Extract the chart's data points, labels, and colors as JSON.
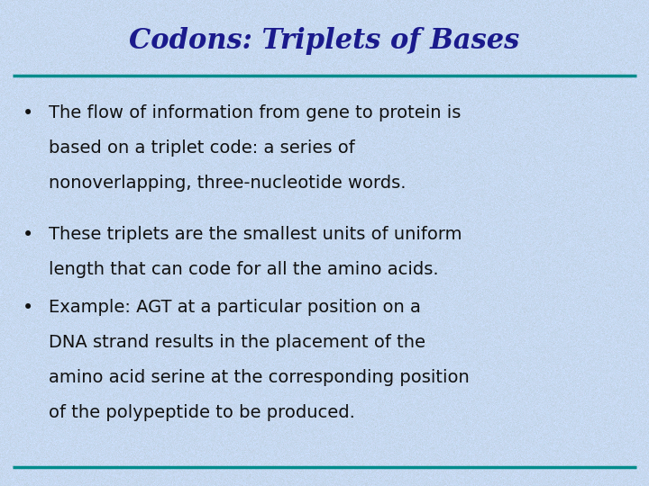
{
  "title": "Codons: Triplets of Bases",
  "title_color": "#1a1a8c",
  "title_fontsize": 22,
  "line_color": "#008b8b",
  "line_width": 2.5,
  "text_color": "#111111",
  "bullet_char": "•",
  "bullet1_line1": "The flow of information from gene to protein is",
  "bullet1_line2_pre": "based on a ",
  "bullet1_line2_bold": "triplet code",
  "bullet1_line2_post": ": a series of",
  "bullet1_line3": "nonoverlapping, three-nucleotide words.",
  "bullet2_line1": "These triplets are the smallest units of uniform",
  "bullet2_line2": "length that can code for all the amino acids.",
  "bullet3_line1": "Example: AGT at a particular position on a",
  "bullet3_line2": "DNA strand results in the placement of the",
  "bullet3_line3": "amino acid serine at the corresponding position",
  "bullet3_line4": "of the polypeptide to be produced.",
  "font_size": 14,
  "figsize": [
    7.2,
    5.4
  ],
  "dpi": 100,
  "bg_base": [
    0.78,
    0.85,
    0.94
  ],
  "bg_pink": [
    0.88,
    0.78,
    0.88
  ],
  "noise_seed": 42,
  "noise_scale": 0.025,
  "pink_scale": 0.018
}
